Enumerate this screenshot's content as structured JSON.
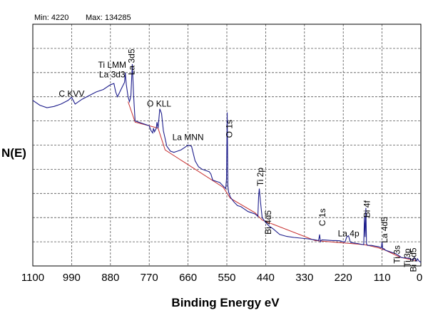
{
  "chart_data": {
    "type": "line",
    "title": "",
    "xlabel": "Binding Energy eV",
    "ylabel": "N(E)",
    "xlim": [
      1100,
      0
    ],
    "ylim": [
      0,
      10
    ],
    "x_reversed": true,
    "grid": true,
    "minmax": {
      "min_text": "Min: 4220",
      "max_text": "Max: 134285"
    },
    "x_tick_labels": [
      "1100",
      "990",
      "880",
      "770",
      "660",
      "550",
      "440",
      "330",
      "220",
      "110",
      "0"
    ],
    "x_ticks": [
      1100,
      990,
      880,
      770,
      660,
      550,
      440,
      330,
      220,
      110,
      0
    ],
    "series": [
      {
        "color": "#1e1e8c",
        "x": [
          1100,
          1080,
          1060,
          1040,
          1020,
          1000,
          990,
          980,
          960,
          940,
          920,
          900,
          880,
          870,
          865,
          860,
          850,
          840,
          838,
          835,
          830,
          826,
          824,
          822,
          818,
          814,
          810,
          800,
          790,
          780,
          770,
          765,
          760,
          758,
          755,
          750,
          748,
          745,
          740,
          735,
          730,
          720,
          710,
          700,
          690,
          680,
          670,
          660,
          650,
          640,
          630,
          620,
          610,
          600,
          595,
          590,
          580,
          570,
          560,
          553,
          551,
          549,
          547,
          545,
          540,
          530,
          520,
          510,
          500,
          490,
          470,
          462,
          460,
          458,
          455,
          450,
          445,
          440,
          430,
          420,
          400,
          380,
          360,
          340,
          320,
          300,
          290,
          287,
          285,
          283,
          280,
          270,
          260,
          250,
          240,
          230,
          220,
          215,
          210,
          205,
          200,
          190,
          180,
          170,
          162,
          160,
          158,
          156,
          154,
          150,
          140,
          130,
          120,
          112,
          110,
          108,
          105,
          100,
          90,
          80,
          70,
          65,
          60,
          58,
          56,
          50,
          40,
          30,
          27,
          25,
          22,
          18,
          15,
          12,
          10,
          5,
          0
        ],
        "y": [
          6.85,
          6.65,
          6.55,
          6.6,
          6.7,
          6.85,
          6.98,
          6.7,
          6.9,
          7.05,
          7.2,
          7.3,
          7.5,
          7.55,
          7.2,
          7.0,
          7.3,
          7.6,
          8.0,
          7.5,
          7.0,
          6.8,
          6.9,
          7.05,
          8.35,
          7.0,
          6.0,
          5.95,
          5.9,
          5.85,
          5.8,
          5.6,
          5.5,
          5.7,
          5.55,
          5.7,
          5.95,
          5.7,
          6.5,
          6.3,
          5.6,
          4.95,
          4.75,
          4.7,
          4.75,
          4.8,
          4.9,
          5.0,
          4.95,
          4.35,
          4.1,
          4.0,
          3.95,
          3.9,
          3.8,
          3.55,
          3.5,
          3.45,
          3.3,
          3.2,
          3.6,
          6.35,
          3.3,
          3.05,
          2.85,
          2.65,
          2.5,
          2.45,
          2.35,
          2.25,
          2.15,
          2.05,
          2.85,
          3.2,
          2.7,
          2.0,
          1.9,
          1.8,
          1.65,
          1.55,
          1.3,
          1.22,
          1.18,
          1.15,
          1.12,
          1.08,
          1.05,
          1.3,
          1.0,
          1.05,
          1.08,
          1.07,
          1.06,
          1.05,
          1.05,
          1.04,
          1.0,
          0.99,
          1.2,
          1.25,
          0.98,
          0.95,
          0.93,
          0.9,
          0.88,
          2.05,
          1.2,
          2.4,
          0.9,
          0.85,
          0.85,
          0.82,
          0.8,
          0.75,
          1.0,
          0.7,
          0.72,
          0.65,
          0.6,
          0.55,
          0.5,
          0.45,
          0.4,
          0.38,
          0.35,
          0.34,
          0.33,
          0.3,
          0.28,
          0.25,
          0.24,
          0.35,
          0.25,
          0.2,
          0.3,
          0.2,
          0.15
        ]
      }
    ],
    "annotations": [
      {
        "text": "C KVV",
        "x": 990,
        "y": 7.0,
        "rotate": 0
      },
      {
        "text": "Ti LMM",
        "x": 875,
        "y": 8.2,
        "rotate": 0
      },
      {
        "text": "La 3d3",
        "x": 875,
        "y": 7.8,
        "rotate": 0
      },
      {
        "text": "La 3d5",
        "x": 812,
        "y": 7.9,
        "rotate": -90
      },
      {
        "text": "O KLL",
        "x": 742,
        "y": 6.6,
        "rotate": 0
      },
      {
        "text": "La MNN",
        "x": 660,
        "y": 5.2,
        "rotate": 0
      },
      {
        "text": "O 1s",
        "x": 535,
        "y": 5.3,
        "rotate": -90
      },
      {
        "text": "Ti 2p",
        "x": 447,
        "y": 3.3,
        "rotate": -90
      },
      {
        "text": "Bi 4d5",
        "x": 425,
        "y": 1.3,
        "rotate": -90
      },
      {
        "text": "C 1s",
        "x": 271,
        "y": 1.65,
        "rotate": -90
      },
      {
        "text": "La 4p",
        "x": 205,
        "y": 1.22,
        "rotate": 0
      },
      {
        "text": "Bi 4f",
        "x": 145,
        "y": 2.0,
        "rotate": -90
      },
      {
        "text": "La 4d5",
        "x": 95,
        "y": 0.95,
        "rotate": -90
      },
      {
        "text": "Ti 3s",
        "x": 60,
        "y": 0.1,
        "rotate": -90
      },
      {
        "text": "Ti 3p",
        "x": 30,
        "y": -0.05,
        "rotate": -90
      },
      {
        "text": "Bi 5d5",
        "x": 13,
        "y": -0.25,
        "rotate": -90
      }
    ]
  },
  "colors": {
    "spectrum": "#1e1e8c",
    "background_line": "#c83232",
    "grid": "#555555"
  }
}
